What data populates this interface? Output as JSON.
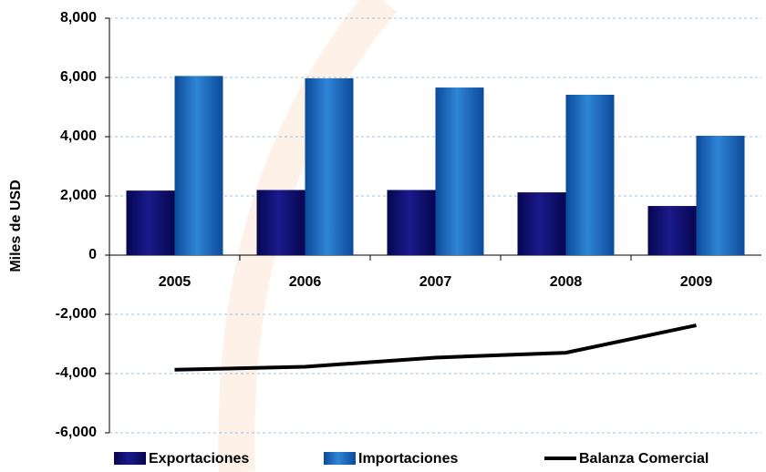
{
  "chart_data": {
    "type": "bar",
    "y_label": "Miles de USD",
    "categories": [
      "2005",
      "2006",
      "2007",
      "2008",
      "2009"
    ],
    "series": [
      {
        "name": "Exportaciones",
        "color": "#0b0b6b",
        "values": [
          2180,
          2200,
          2200,
          2120,
          1660
        ]
      },
      {
        "name": "Importaciones",
        "color": "#1f6cc0",
        "values": [
          6050,
          5970,
          5660,
          5415,
          4030
        ]
      },
      {
        "name": "Balanza Comercial",
        "color": "#000000",
        "type": "line",
        "values": [
          -3870,
          -3770,
          -3460,
          -3295,
          -2370
        ]
      }
    ],
    "ylim": [
      -6000,
      8000
    ],
    "yticks": [
      {
        "value": -6000,
        "label": "-6,000"
      },
      {
        "value": -4000,
        "label": "-4,000"
      },
      {
        "value": -2000,
        "label": "-2,000"
      },
      0,
      {
        "value": 2000,
        "label": "2,000"
      },
      {
        "value": 4000,
        "label": "4,000"
      },
      {
        "value": 6000,
        "label": "6,000"
      },
      {
        "value": 8000,
        "label": "8,000"
      }
    ],
    "grid": true,
    "legend": "bottom"
  }
}
